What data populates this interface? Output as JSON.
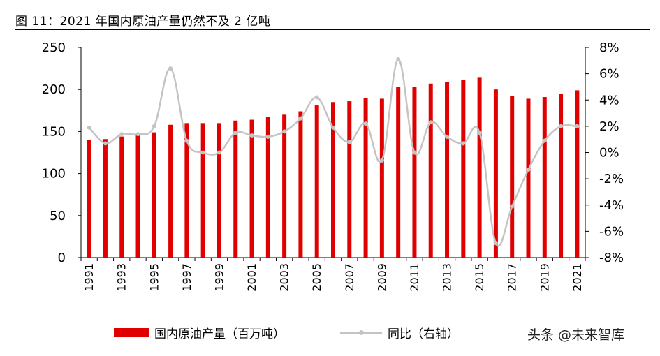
{
  "title": "图 11：2021 年国内原油产量仍然不及 2 亿吨",
  "watermark": "头条 @未来智库",
  "legend": {
    "bar_label": "国内原油产量（百万吨）",
    "line_label": "同比（右轴）"
  },
  "colors": {
    "bar": "#e00000",
    "line": "#c4c4c4"
  },
  "chart_data": {
    "type": "bar",
    "years": [
      1991,
      1992,
      1993,
      1994,
      1995,
      1996,
      1997,
      1998,
      1999,
      2000,
      2001,
      2002,
      2003,
      2004,
      2005,
      2006,
      2007,
      2008,
      2009,
      2010,
      2011,
      2012,
      2013,
      2014,
      2015,
      2016,
      2017,
      2018,
      2019,
      2020,
      2021
    ],
    "x_tick_labels": [
      "1991",
      "1993",
      "1995",
      "1997",
      "1999",
      "2001",
      "2003",
      "2005",
      "2007",
      "2009",
      "2011",
      "2013",
      "2015",
      "2017",
      "2019",
      "2021"
    ],
    "series": [
      {
        "name": "国内原油产量（百万吨）",
        "type": "bar",
        "axis": "left",
        "values": [
          140,
          141,
          144,
          146,
          149,
          158,
          160,
          160,
          160,
          163,
          164,
          167,
          170,
          174,
          181,
          185,
          186,
          190,
          189,
          203,
          203,
          207,
          209,
          211,
          214,
          200,
          192,
          189,
          191,
          195,
          199
        ]
      },
      {
        "name": "同比（右轴）",
        "type": "line",
        "axis": "right",
        "values": [
          1.9,
          0.7,
          1.4,
          1.4,
          2.0,
          6.4,
          0.9,
          0.0,
          0.0,
          1.5,
          1.3,
          1.2,
          1.6,
          2.6,
          4.2,
          1.9,
          0.8,
          2.2,
          -0.6,
          7.1,
          0.0,
          2.3,
          1.2,
          0.7,
          1.5,
          -6.9,
          -4.1,
          -1.3,
          0.9,
          2.0,
          2.0
        ]
      }
    ],
    "left_axis": {
      "ylim": [
        0,
        250
      ],
      "ticks": [
        0,
        50,
        100,
        150,
        200,
        250
      ]
    },
    "right_axis": {
      "ylim": [
        -8,
        8
      ],
      "ticks": [
        "8%",
        "6%",
        "4%",
        "2%",
        "0%",
        "-2%",
        "-4%",
        "-6%",
        "-8%"
      ]
    },
    "grid": false,
    "legend_position": "bottom"
  }
}
